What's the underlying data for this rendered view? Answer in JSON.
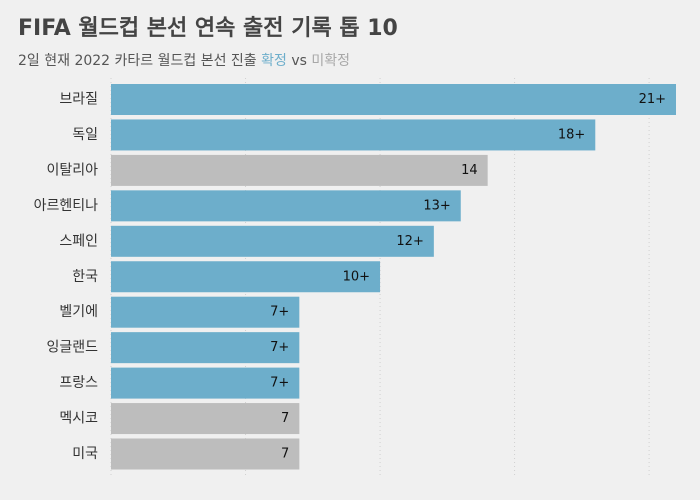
{
  "header": {
    "title": "FIFA 월드컵 본선 연속 출전 기록 톱 10",
    "subtitle_prefix": "2일 현재 2022 카타르 월드컵 본선 진출 ",
    "subtitle_confirmed": "확정",
    "subtitle_vs": " vs ",
    "subtitle_unconfirmed": "미확정"
  },
  "colors": {
    "confirmed": "#6daecb",
    "unconfirmed": "#bdbdbd",
    "background": "#f0f0f0",
    "grid": "#d0d0d0"
  },
  "chart_data": {
    "type": "bar",
    "orientation": "horizontal",
    "categories": [
      "브라질",
      "독일",
      "이탈리아",
      "아르헨티나",
      "스페인",
      "한국",
      "벨기에",
      "잉글랜드",
      "프랑스",
      "멕시코",
      "미국"
    ],
    "values": [
      21,
      18,
      14,
      13,
      12,
      10,
      7,
      7,
      7,
      7,
      7
    ],
    "labels": [
      "21+",
      "18+",
      "14",
      "13+",
      "12+",
      "10+",
      "7+",
      "7+",
      "7+",
      "7",
      "7"
    ],
    "status": [
      "확정",
      "확정",
      "미확정",
      "확정",
      "확정",
      "확정",
      "확정",
      "확정",
      "확정",
      "미확정",
      "미확정"
    ],
    "xlim": [
      0,
      21
    ],
    "grid": true,
    "legend": "subtitle"
  }
}
